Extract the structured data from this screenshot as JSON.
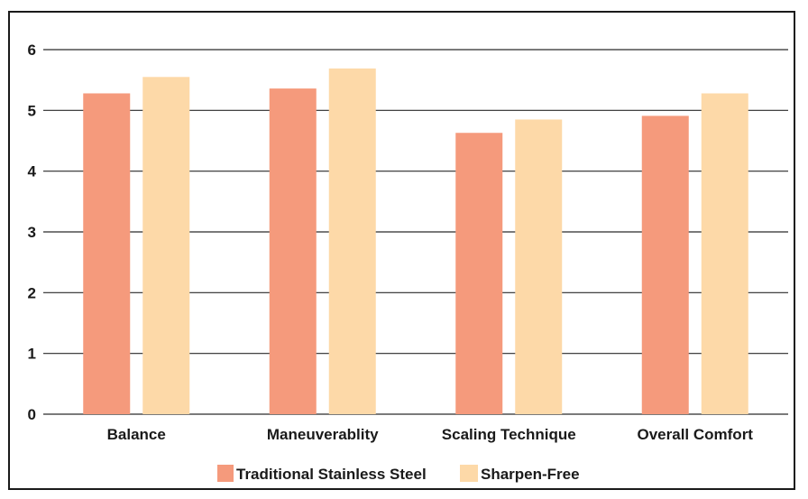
{
  "chart_data": {
    "type": "bar",
    "categories": [
      "Balance",
      "Maneuverablity",
      "Scaling Technique",
      "Overall Comfort"
    ],
    "series": [
      {
        "name": "Traditional Stainless Steel",
        "values": [
          5.28,
          5.36,
          4.63,
          4.91
        ]
      },
      {
        "name": "Sharpen-Free",
        "values": [
          5.55,
          5.69,
          4.85,
          5.28
        ]
      }
    ],
    "ylim": [
      0,
      6
    ],
    "yticks": [
      "0",
      "1",
      "2",
      "3",
      "4",
      "5",
      "6"
    ],
    "grid": true,
    "legend_position": "bottom-center",
    "colors": {
      "Traditional Stainless Steel": "#f59a7c",
      "Sharpen-Free": "#fdd9a8",
      "grid": "#2a2a2a"
    }
  }
}
